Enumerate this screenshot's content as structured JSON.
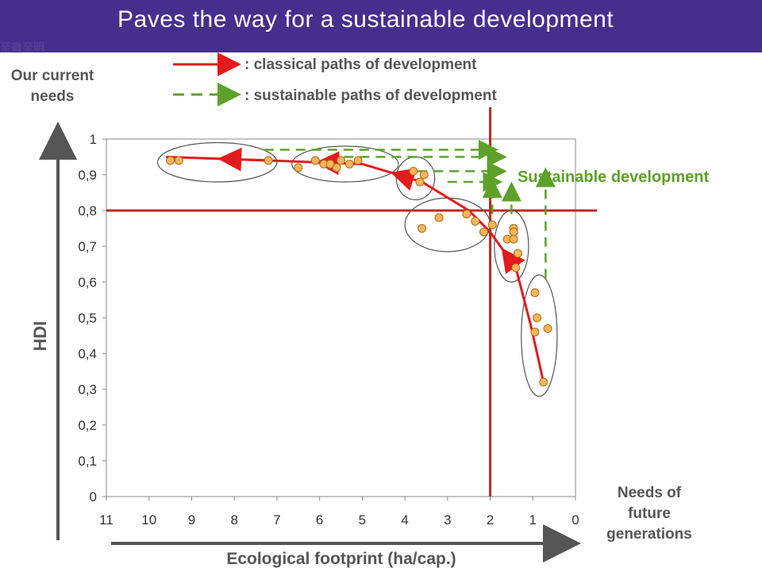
{
  "title": "Paves the way for a sustainable development",
  "logo_text": "至微至明",
  "colors": {
    "classical": "#e41a1c",
    "sustainable": "#5ea02a",
    "point": "#f5b55a",
    "point_stroke": "#b26b1a",
    "threshold": "#c0281e",
    "ellipse": "#555555"
  },
  "legend": {
    "classical": ": classical paths of development",
    "sustainable": ": sustainable paths of development"
  },
  "annotations": {
    "top_left": [
      "Our current",
      "needs"
    ],
    "bottom_right": [
      "Needs of",
      "future",
      "generations"
    ],
    "sustainable_label": "Sustainable development"
  },
  "chart_data": {
    "type": "scatter",
    "xlabel": "Ecological footprint (ha/cap.)",
    "ylabel": "HDI",
    "xlim": [
      11,
      0
    ],
    "ylim": [
      0,
      1
    ],
    "x_ticks": [
      "11",
      "10",
      "9",
      "8",
      "7",
      "6",
      "5",
      "4",
      "3",
      "2",
      "1",
      "0"
    ],
    "y_ticks": [
      "0",
      "0,1",
      "0,2",
      "0,3",
      "0,4",
      "0,5",
      "0,6",
      "0,7",
      "0,8",
      "0,9",
      "1"
    ],
    "thresholds": {
      "x": 2.0,
      "y": 0.8
    },
    "points": [
      [
        9.5,
        0.94
      ],
      [
        9.3,
        0.94
      ],
      [
        7.2,
        0.94
      ],
      [
        6.5,
        0.92
      ],
      [
        6.1,
        0.94
      ],
      [
        5.9,
        0.93
      ],
      [
        5.75,
        0.93
      ],
      [
        5.6,
        0.92
      ],
      [
        5.5,
        0.94
      ],
      [
        5.3,
        0.93
      ],
      [
        5.1,
        0.94
      ],
      [
        3.8,
        0.91
      ],
      [
        3.65,
        0.88
      ],
      [
        3.55,
        0.9
      ],
      [
        3.6,
        0.75
      ],
      [
        3.2,
        0.78
      ],
      [
        2.55,
        0.79
      ],
      [
        2.35,
        0.77
      ],
      [
        2.15,
        0.74
      ],
      [
        1.95,
        0.76
      ],
      [
        1.6,
        0.72
      ],
      [
        1.45,
        0.75
      ],
      [
        1.45,
        0.74
      ],
      [
        1.45,
        0.72
      ],
      [
        1.35,
        0.68
      ],
      [
        1.4,
        0.64
      ],
      [
        0.95,
        0.57
      ],
      [
        0.9,
        0.5
      ],
      [
        0.95,
        0.46
      ],
      [
        0.65,
        0.47
      ],
      [
        0.75,
        0.32
      ]
    ],
    "classical_path": [
      [
        9.6,
        0.95
      ],
      [
        7.2,
        0.94
      ],
      [
        5.0,
        0.93
      ],
      [
        3.6,
        0.88
      ],
      [
        2.5,
        0.8
      ],
      [
        2.0,
        0.74
      ],
      [
        1.4,
        0.64
      ],
      [
        1.05,
        0.48
      ],
      [
        0.75,
        0.32
      ]
    ],
    "sustainable_paths": [
      [
        [
          7.3,
          0.97
        ],
        [
          1.9,
          0.97
        ]
      ],
      [
        [
          5.8,
          0.95
        ],
        [
          1.7,
          0.95
        ]
      ],
      [
        [
          3.7,
          0.91
        ],
        [
          1.7,
          0.91
        ]
      ],
      [
        [
          3.0,
          0.88
        ],
        [
          1.8,
          0.88
        ]
      ],
      [
        [
          1.95,
          0.79
        ],
        [
          1.95,
          0.88
        ]
      ],
      [
        [
          1.5,
          0.79
        ],
        [
          1.5,
          0.87
        ]
      ],
      [
        [
          0.7,
          0.61
        ],
        [
          0.7,
          0.91
        ]
      ]
    ],
    "clusters": [
      {
        "cx": 8.4,
        "cy": 0.935,
        "rx": 1.4,
        "ry": 0.055
      },
      {
        "cx": 5.4,
        "cy": 0.93,
        "rx": 1.25,
        "ry": 0.05
      },
      {
        "cx": 3.75,
        "cy": 0.89,
        "rx": 0.45,
        "ry": 0.06
      },
      {
        "cx": 3.0,
        "cy": 0.76,
        "rx": 1.0,
        "ry": 0.075
      },
      {
        "cx": 1.5,
        "cy": 0.7,
        "rx": 0.4,
        "ry": 0.1
      },
      {
        "cx": 0.85,
        "cy": 0.45,
        "rx": 0.42,
        "ry": 0.17
      }
    ]
  }
}
